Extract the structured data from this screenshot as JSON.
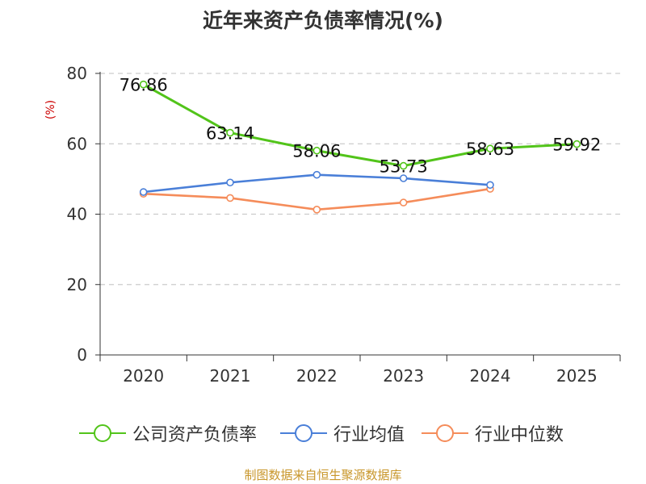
{
  "chart_data": {
    "type": "line",
    "title": "近年来资产负债率情况(%)",
    "ylabel": "(%)",
    "categories": [
      "2020",
      "2021",
      "2022",
      "2023",
      "2024",
      "2025"
    ],
    "y_ticks": [
      "0",
      "20",
      "40",
      "60",
      "80"
    ],
    "ylim": [
      0,
      80
    ],
    "grid": true,
    "legend_position": "bottom",
    "series": [
      {
        "name": "公司资产负债率",
        "color": "#52c41a",
        "values": [
          76.86,
          63.14,
          58.06,
          53.73,
          58.63,
          59.92
        ],
        "labels": [
          "76.86",
          "63.14",
          "58.06",
          "53.73",
          "58.63",
          "59.92"
        ]
      },
      {
        "name": "行业均值",
        "color": "#4a7fd8",
        "values": [
          46.3,
          49.0,
          51.2,
          50.2,
          48.3,
          null
        ]
      },
      {
        "name": "行业中位数",
        "color": "#f58c5a",
        "values": [
          45.8,
          44.6,
          41.3,
          43.3,
          47.2,
          null
        ]
      }
    ]
  },
  "footer": "制图数据来自恒生聚源数据库"
}
